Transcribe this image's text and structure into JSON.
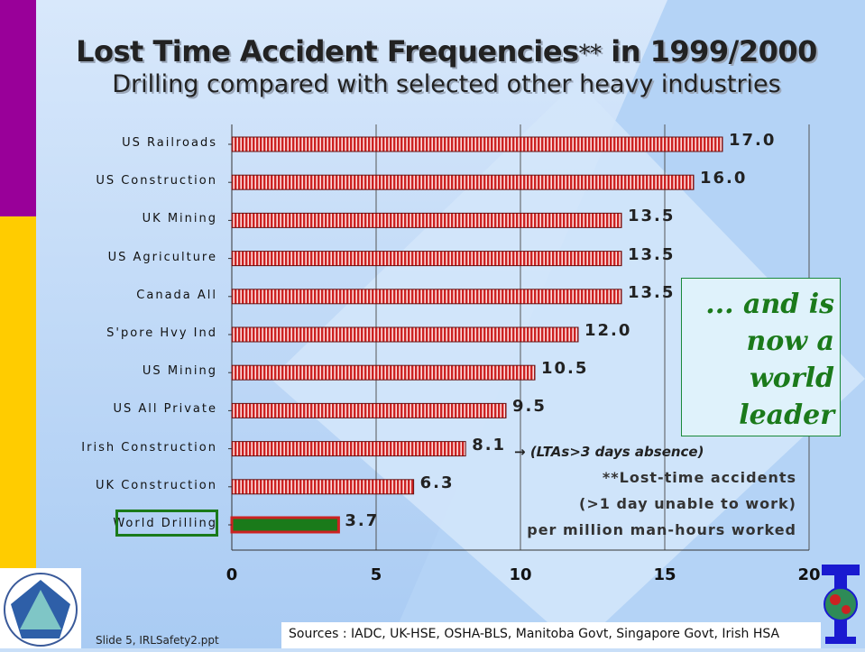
{
  "title": {
    "main": "Lost Time Accident Frequencies",
    "stars": "**",
    "tail": " in 1999/2000"
  },
  "subtitle": "Drilling compared with selected other heavy industries",
  "chart_data": {
    "type": "bar",
    "orientation": "horizontal",
    "categories": [
      "US Railroads",
      "US Construction",
      "UK Mining",
      "US Agriculture",
      "Canada All",
      "S'pore Hvy Ind",
      "US Mining",
      "US All Private",
      "Irish Construction",
      "UK Construction",
      "World Drilling"
    ],
    "values": [
      17.0,
      16.0,
      13.5,
      13.5,
      13.5,
      12.0,
      10.5,
      9.5,
      8.1,
      6.3,
      3.7
    ],
    "value_labels": [
      "17.0",
      "16.0",
      "13.5",
      "13.5",
      "13.5",
      "12.0",
      "10.5",
      "9.5",
      "8.1",
      "6.3",
      "3.7"
    ],
    "xlim": [
      0,
      20
    ],
    "x_ticks": [
      "0",
      "5",
      "10",
      "15",
      "20"
    ],
    "grid": "vertical",
    "colors": {
      "default_bar": "#cc2222",
      "bar_stripe": "#ffffff",
      "highlight_bar": "#1a7a1a",
      "highlight_border": "#cc2222"
    },
    "highlight_category": "World Drilling"
  },
  "callout": {
    "lines": [
      "... and is",
      "now a",
      "world",
      "leader"
    ]
  },
  "lta_note": "(LTAs>3 days absence)",
  "footnote": {
    "line1": "**Lost-time accidents",
    "line2": "(>1 day unable to work)",
    "line3": "per million man-hours worked"
  },
  "sources": "Sources : IADC, UK-HSE, OSHA-BLS, Manitoba Govt, Singapore Govt, Irish HSA",
  "slide_label": "Slide 5, IRLSafety2.ppt"
}
